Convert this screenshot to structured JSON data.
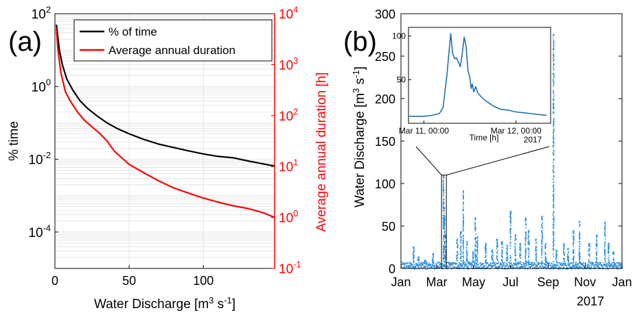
{
  "chart_data": [
    {
      "panel_label": "(a)",
      "type": "line",
      "xlabel": "Water Discharge [m",
      "xlabel_sup": "3",
      "xlabel_mid": " s",
      "xlabel_sup2": "-1",
      "xlabel_end": "]",
      "ylabel_left": "% time",
      "ylabel_right": "Average annual duration [h]",
      "xlim": [
        0,
        148
      ],
      "ylim_left": [
        1e-05,
        100
      ],
      "ylim_right": [
        0.1,
        10000
      ],
      "yscale_left": "log",
      "yscale_right": "log",
      "grid": true,
      "legend_position": "top-right",
      "x_ticks": [
        0,
        50,
        100
      ],
      "y_ticks_left": [
        {
          "base": "10",
          "exp": "2",
          "value": 100
        },
        {
          "base": "10",
          "exp": "0",
          "value": 1
        },
        {
          "base": "10",
          "exp": "-2",
          "value": 0.01
        },
        {
          "base": "10",
          "exp": "-4",
          "value": 0.0001
        }
      ],
      "y_ticks_right": [
        {
          "base": "10",
          "exp": "4",
          "value": 10000
        },
        {
          "base": "10",
          "exp": "3",
          "value": 1000
        },
        {
          "base": "10",
          "exp": "2",
          "value": 100
        },
        {
          "base": "10",
          "exp": "1",
          "value": 10
        },
        {
          "base": "10",
          "exp": "0",
          "value": 1
        },
        {
          "base": "10",
          "exp": "-1",
          "value": 0.1
        }
      ],
      "series": [
        {
          "name": "% of time",
          "axis": "left",
          "color": "#000000",
          "x": [
            1,
            3,
            5,
            8,
            12,
            17,
            22,
            28,
            35,
            42,
            50,
            60,
            70,
            80,
            90,
            100,
            110,
            120,
            130,
            140,
            148
          ],
          "y": [
            50,
            10,
            4,
            1.6,
            0.8,
            0.4,
            0.25,
            0.16,
            0.1,
            0.07,
            0.05,
            0.035,
            0.026,
            0.021,
            0.017,
            0.014,
            0.012,
            0.011,
            0.009,
            0.0075,
            0.0065
          ]
        },
        {
          "name": "Average annual duration",
          "axis": "right",
          "color": "#ff0000",
          "x": [
            1,
            2,
            4,
            7,
            10,
            15,
            20,
            25,
            30,
            35,
            40,
            50,
            60,
            70,
            80,
            90,
            100,
            110,
            120,
            130,
            140,
            148
          ],
          "y": [
            5000,
            2000,
            700,
            300,
            200,
            120,
            80,
            60,
            45,
            32,
            20,
            11,
            7.5,
            5.2,
            3.8,
            3.0,
            2.4,
            2.0,
            1.7,
            1.5,
            1.25,
            1.0
          ]
        }
      ]
    },
    {
      "panel_label": "(b)",
      "type": "scatter",
      "ylabel": "Water Discharge [m",
      "ylabel_sup": "3",
      "ylabel_mid": " s",
      "ylabel_sup2": "-1",
      "ylabel_end": "]",
      "year_label": "2017",
      "ylim": [
        0,
        300
      ],
      "y_ticks": [
        0,
        50,
        100,
        150,
        200,
        250,
        300
      ],
      "x_tick_labels": [
        "Jan",
        "Mar",
        "May",
        "Jul",
        "Sep",
        "Nov",
        "Jan"
      ],
      "x_tick_days": [
        0,
        59,
        120,
        181,
        243,
        304,
        365
      ],
      "color": "#2a8fdc",
      "baseline_range": [
        0,
        8
      ],
      "events": [
        {
          "day": 20,
          "peak": 26,
          "width": 2
        },
        {
          "day": 28,
          "peak": 14,
          "width": 3
        },
        {
          "day": 39,
          "peak": 10,
          "width": 3
        },
        {
          "day": 52,
          "peak": 18,
          "width": 2
        },
        {
          "day": 69.5,
          "peak": 110,
          "width": 1.2
        },
        {
          "day": 71,
          "peak": 72,
          "width": 1.5
        },
        {
          "day": 73,
          "peak": 40,
          "width": 1.5
        },
        {
          "day": 92,
          "peak": 35,
          "width": 2
        },
        {
          "day": 98,
          "peak": 44,
          "width": 2
        },
        {
          "day": 102,
          "peak": 92,
          "width": 1
        },
        {
          "day": 108,
          "peak": 32,
          "width": 2
        },
        {
          "day": 118,
          "peak": 20,
          "width": 2
        },
        {
          "day": 122,
          "peak": 60,
          "width": 1.5
        },
        {
          "day": 125,
          "peak": 38,
          "width": 2
        },
        {
          "day": 139,
          "peak": 30,
          "width": 2
        },
        {
          "day": 150,
          "peak": 22,
          "width": 3
        },
        {
          "day": 158,
          "peak": 35,
          "width": 2
        },
        {
          "day": 166,
          "peak": 32,
          "width": 2
        },
        {
          "day": 174,
          "peak": 28,
          "width": 2
        },
        {
          "day": 180,
          "peak": 68,
          "width": 1.5
        },
        {
          "day": 188,
          "peak": 40,
          "width": 2
        },
        {
          "day": 196,
          "peak": 30,
          "width": 2
        },
        {
          "day": 205,
          "peak": 60,
          "width": 1.5
        },
        {
          "day": 210,
          "peak": 45,
          "width": 2
        },
        {
          "day": 222,
          "peak": 35,
          "width": 2
        },
        {
          "day": 232,
          "peak": 62,
          "width": 1.5
        },
        {
          "day": 238,
          "peak": 30,
          "width": 2
        },
        {
          "day": 251,
          "peak": 276,
          "width": 1.5
        },
        {
          "day": 256,
          "peak": 22,
          "width": 2
        },
        {
          "day": 268,
          "peak": 30,
          "width": 2
        },
        {
          "day": 275,
          "peak": 24,
          "width": 2
        },
        {
          "day": 284,
          "peak": 45,
          "width": 2
        },
        {
          "day": 294,
          "peak": 56,
          "width": 1.5
        },
        {
          "day": 310,
          "peak": 30,
          "width": 2
        },
        {
          "day": 322,
          "peak": 40,
          "width": 2
        },
        {
          "day": 336,
          "peak": 55,
          "width": 1.5
        },
        {
          "day": 342,
          "peak": 30,
          "width": 2
        },
        {
          "day": 350,
          "peak": 20,
          "width": 2
        }
      ],
      "highlight_box": {
        "day_range": [
          67,
          75
        ],
        "y_range": [
          0,
          110
        ]
      },
      "inset": {
        "type": "line",
        "xlabel": "Time [h]",
        "ylim": [
          0,
          110
        ],
        "y_ticks": [
          50,
          100
        ],
        "x_ticks": [
          {
            "label": "Mar 11, 00:00",
            "hour": 0
          },
          {
            "label": "Mar 12, 00:00",
            "hour": 24
          }
        ],
        "year_label": "2017",
        "xlim": [
          -4,
          33
        ],
        "x": [
          -4,
          0,
          2,
          4,
          5,
          6,
          7,
          7.5,
          8,
          8.5,
          9,
          9.5,
          10,
          10.5,
          11,
          11.5,
          12,
          12.3,
          12.6,
          13,
          13.5,
          14,
          15,
          16,
          17,
          18,
          19,
          20,
          22,
          24,
          26,
          28,
          30,
          32
        ],
        "y": [
          8,
          8,
          9,
          11,
          18,
          55,
          103,
          80,
          74,
          75,
          70,
          65,
          80,
          99,
          88,
          60,
          52,
          40,
          45,
          36,
          42,
          35,
          30,
          26,
          23,
          20,
          18,
          16,
          15,
          13,
          12,
          11,
          10,
          9
        ]
      }
    }
  ]
}
